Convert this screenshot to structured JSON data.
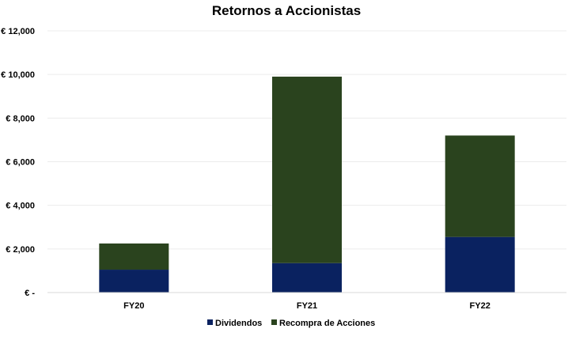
{
  "chart_data": {
    "type": "bar",
    "stacked": true,
    "title": "Retornos a Accionistas",
    "categories": [
      "FY20",
      "FY21",
      "FY22"
    ],
    "series": [
      {
        "name": "Dividendos",
        "color": "#0a2260",
        "values": [
          1050,
          1350,
          2550
        ]
      },
      {
        "name": "Recompra de Acciones",
        "color": "#2a431e",
        "values": [
          1200,
          8550,
          4650
        ]
      }
    ],
    "y_ticks": [
      0,
      2000,
      4000,
      6000,
      8000,
      10000,
      12000
    ],
    "y_tick_labels": [
      "€ -",
      "€ 2,000",
      "€ 4,000",
      "€ 6,000",
      "€ 8,000",
      "€ 10,000",
      "€ 12,000"
    ],
    "ylim": [
      0,
      12000
    ],
    "grid": true,
    "legend_position": "bottom"
  }
}
